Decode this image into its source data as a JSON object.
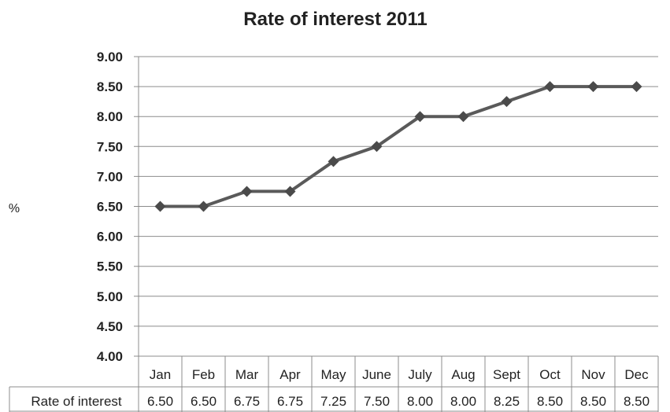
{
  "chart_data": {
    "type": "line",
    "title": "Rate of interest 2011",
    "ylabel": "%",
    "xlabel": "",
    "categories": [
      "Jan",
      "Feb",
      "Mar",
      "Apr",
      "May",
      "June",
      "July",
      "Aug",
      "Sept",
      "Oct",
      "Nov",
      "Dec"
    ],
    "series": [
      {
        "name": "Rate of interest",
        "values": [
          6.5,
          6.5,
          6.75,
          6.75,
          7.25,
          7.5,
          8.0,
          8.0,
          8.25,
          8.5,
          8.5,
          8.5
        ]
      }
    ],
    "data_table_labels": [
      "6.50",
      "6.50",
      "6.75",
      "6.75",
      "7.25",
      "7.50",
      "8.00",
      "8.00",
      "8.25",
      "8.50",
      "8.50",
      "8.50"
    ],
    "ylim": [
      4.0,
      9.0
    ],
    "yticks": [
      "9.00",
      "8.50",
      "8.00",
      "7.50",
      "7.00",
      "6.50",
      "6.00",
      "5.50",
      "5.00",
      "4.50",
      "4.00"
    ],
    "ytick_values": [
      9.0,
      8.5,
      8.0,
      7.5,
      7.0,
      6.5,
      6.0,
      5.5,
      5.0,
      4.5,
      4.0
    ],
    "grid": "horizontal",
    "line_color": "#5a5a5a",
    "marker": "diamond",
    "marker_color": "#4a4a4a",
    "grid_color": "#8c8c8c",
    "data_table": true
  }
}
